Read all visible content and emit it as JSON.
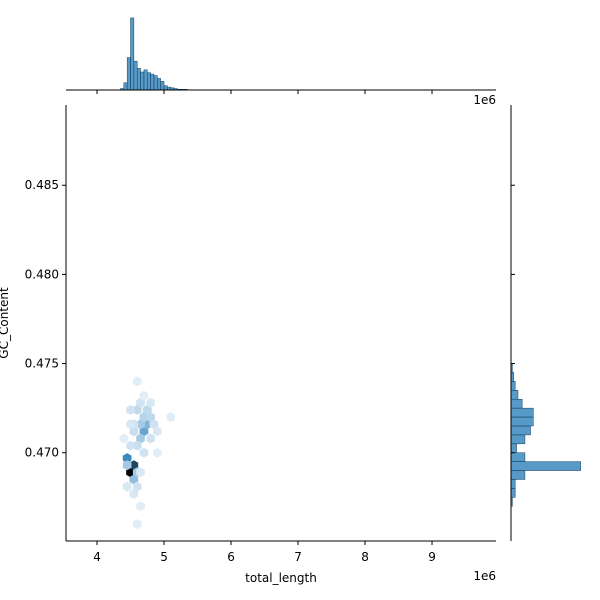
{
  "chart_data": [
    {
      "type": "hexbin",
      "x_label": "total_length",
      "y_label": "GC_Content",
      "x_offset": "1e6",
      "xlim": [
        3.537,
        9.955
      ],
      "ylim": [
        0.46505,
        0.4895
      ],
      "xticks": [
        4,
        5,
        6,
        7,
        8,
        9
      ],
      "yticks": [
        {
          "value": 0.47,
          "label": "0.470"
        },
        {
          "value": 0.475,
          "label": "0.475"
        },
        {
          "value": 0.48,
          "label": "0.480"
        },
        {
          "value": 0.485,
          "label": "0.485"
        }
      ],
      "color": "#3b8bc2",
      "x": [
        4.5,
        4.55,
        4.45,
        4.55,
        4.45,
        4.6,
        4.7,
        4.75,
        4.65,
        4.7,
        4.8,
        4.65,
        4.55,
        4.6,
        4.75,
        4.5,
        4.85,
        4.6,
        4.5,
        4.8,
        4.7,
        4.55,
        4.65,
        4.8,
        4.5,
        4.55,
        4.6,
        4.65,
        4.45,
        4.7,
        4.6,
        4.9,
        4.6,
        4.65,
        5.1,
        4.4,
        4.9
      ],
      "y": [
        0.4689,
        0.4693,
        0.4697,
        0.4685,
        0.4693,
        0.4689,
        0.4712,
        0.4716,
        0.4716,
        0.472,
        0.472,
        0.4708,
        0.4712,
        0.4724,
        0.4724,
        0.4724,
        0.4716,
        0.4704,
        0.4704,
        0.4708,
        0.47,
        0.4716,
        0.4728,
        0.4728,
        0.4716,
        0.4677,
        0.4681,
        0.4689,
        0.4681,
        0.4732,
        0.474,
        0.4712,
        0.466,
        0.467,
        0.472,
        0.4708,
        0.47
      ],
      "counts": [
        40,
        30,
        20,
        10,
        8,
        8,
        15,
        12,
        8,
        6,
        5,
        8,
        4,
        5,
        5,
        3,
        3,
        4,
        3,
        3,
        3,
        3,
        3,
        2,
        2,
        2,
        3,
        2,
        2,
        1,
        1,
        2,
        1,
        1,
        1,
        1,
        1
      ]
    },
    {
      "type": "histogram",
      "orientation": "vertical",
      "x_offset": "1e6",
      "color": "#1f77b4",
      "xlim": [
        3.537,
        9.955
      ],
      "ylim": [
        0,
        111
      ],
      "xticks": [
        4,
        5,
        6,
        7,
        8,
        9
      ],
      "bins": [
        4.35,
        4.4,
        4.45,
        4.5,
        4.55,
        4.6,
        4.65,
        4.7,
        4.75,
        4.8,
        4.85,
        4.9,
        4.95,
        5.0,
        5.05,
        5.1,
        5.15,
        5.2,
        5.25,
        5.3,
        5.35
      ],
      "counts": [
        2,
        10,
        45,
        100,
        40,
        30,
        25,
        28,
        24,
        22,
        20,
        16,
        12,
        6,
        4,
        3,
        2,
        1,
        1,
        1
      ]
    },
    {
      "type": "histogram",
      "orientation": "horizontal",
      "color": "#1f77b4",
      "ylim": [
        0.46505,
        0.4895
      ],
      "xlim": [
        0,
        56
      ],
      "yticks": [
        0.47,
        0.475,
        0.48,
        0.485
      ],
      "bins": [
        0.467,
        0.4675,
        0.468,
        0.4685,
        0.469,
        0.4695,
        0.47,
        0.4705,
        0.471,
        0.4715,
        0.472,
        0.4725,
        0.473,
        0.4735,
        0.474,
        0.4745,
        0.475
      ],
      "counts": [
        1,
        3,
        3,
        10,
        50,
        10,
        4,
        10,
        14,
        16,
        16,
        8,
        5,
        3,
        2,
        1
      ]
    }
  ]
}
